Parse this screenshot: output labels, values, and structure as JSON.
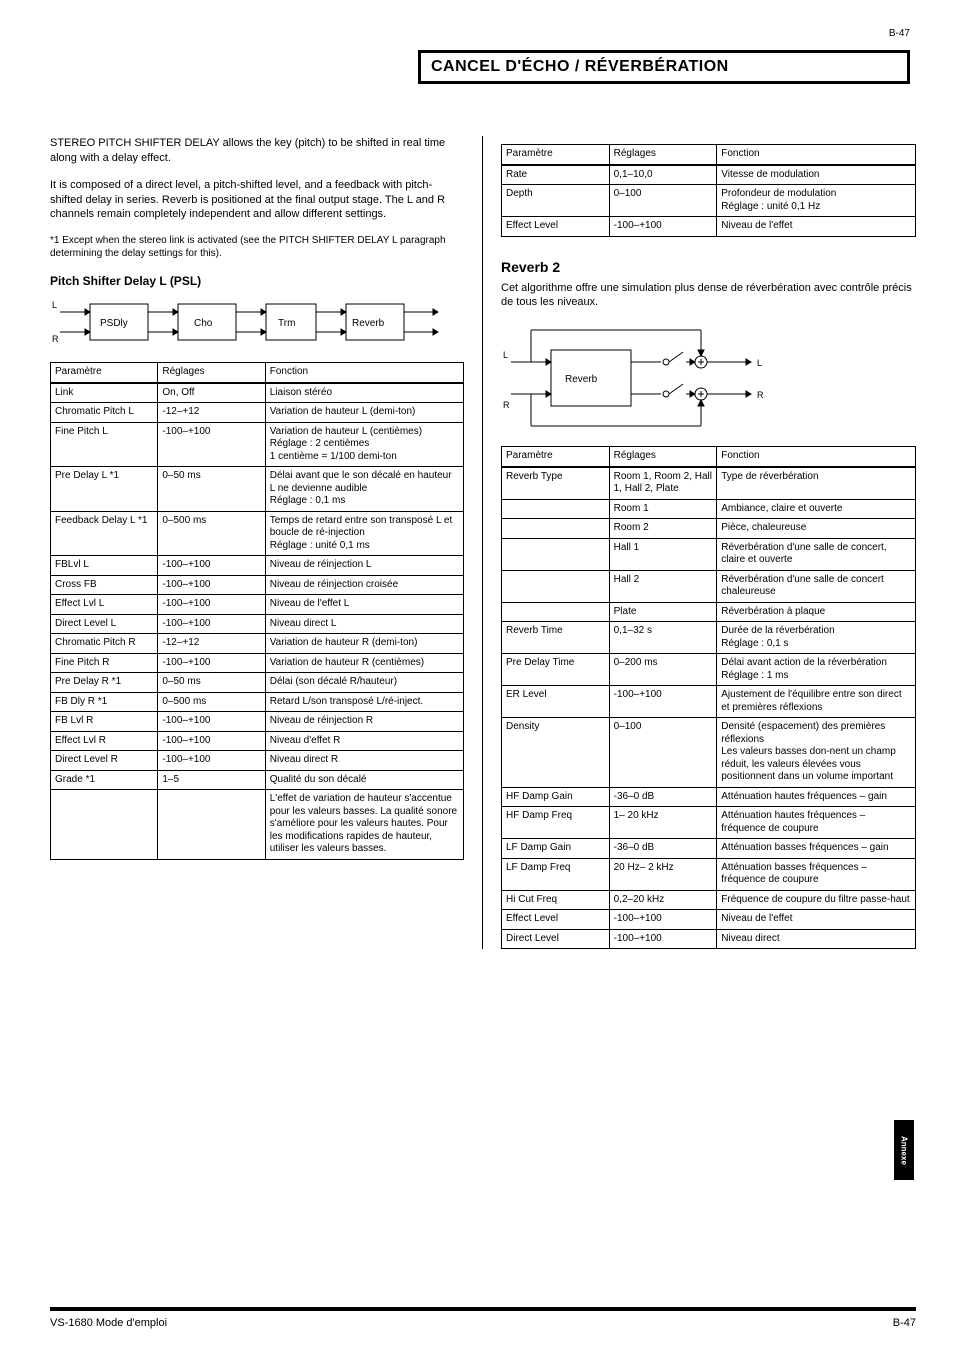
{
  "meta": {
    "page_top": "B-47",
    "header_title": "CANCEL D'ÉCHO / RÉVERBÉRATION",
    "footer_left": "VS-1680 Mode d'emploi",
    "footer_right": "B-47",
    "sidetab": "Annexe"
  },
  "intro": {
    "h": "Echo canceller/Reverb",
    "p1": "STEREO PITCH SHIFTER DELAY allows the key (pitch) to be shifted in real time along with a delay effect.",
    "p2": "It is composed of a direct level, a pitch-shifted level, and a feedback with pitch-shifted delay in series. Reverb is positioned at the final output stage. The L and R channels remain completely independent and allow different settings.",
    "note": "*1 Except when the stereo link is activated (see the PITCH SHIFTER DELAY L paragraph determining the delay settings for this)."
  },
  "pitch_shifter": {
    "title": "Pitch Shifter Delay L (PSL)",
    "diagram": {
      "blocks": [
        "PSDly",
        "Cho",
        "Trm",
        "Reverb"
      ],
      "in_labels": [
        "L",
        "R"
      ]
    },
    "headers": [
      "Paramètre",
      "Réglages",
      "Fonction"
    ],
    "rows": [
      [
        "Link",
        "On, Off",
        "Liaison stéréo"
      ],
      [
        "Chromatic Pitch L",
        "-12–+12",
        "Variation de hauteur L (demi-ton)"
      ],
      [
        "Fine Pitch L",
        "-100–+100",
        "Variation de hauteur L (centièmes)\nRéglage : 2 centièmes\n1 centième = 1/100 demi-ton"
      ],
      [
        "Pre Delay L *1",
        "0–50 ms",
        "Délai avant que le son décalé en hauteur L ne devienne audible\nRéglage : 0,1 ms"
      ],
      [
        "Feedback Delay L *1",
        "0–500 ms",
        "Temps de retard entre son transposé L et boucle de ré-injection\nRéglage : unité 0,1 ms"
      ],
      [
        "FBLvl L",
        "-100–+100",
        "Niveau de réinjection L"
      ],
      [
        "Cross FB",
        "-100–+100",
        "Niveau de réinjection croisée"
      ],
      [
        "Effect Lvl L",
        "-100–+100",
        "Niveau de l'effet L"
      ],
      [
        "Direct Level L",
        "-100–+100",
        "Niveau direct L"
      ],
      [
        "Chromatic Pitch R",
        "-12–+12",
        "Variation de hauteur R (demi-ton)"
      ],
      [
        "Fine Pitch R",
        "-100–+100",
        "Variation de hauteur R (centièmes)"
      ],
      [
        "Pre Delay R *1",
        "0–50 ms",
        "Délai (son décalé R/hauteur)"
      ],
      [
        "FB Dly R *1",
        "0–500 ms",
        "Retard L/son transposé L/ré-inject."
      ],
      [
        "FB Lvl R",
        "-100–+100",
        "Niveau de réinjection R"
      ],
      [
        "Effect Lvl R",
        "-100–+100",
        "Niveau d'effet R"
      ],
      [
        "Direct Level R",
        "-100–+100",
        "Niveau direct R"
      ],
      [
        "Grade *1",
        "1–5",
        "Qualité du son décalé"
      ],
      [
        "",
        "",
        "L'effet de variation de hauteur s'accentue pour les valeurs basses. La qualité sonore s'améliore pour les valeurs hautes. Pour les modifications rapides de hauteur, utiliser les valeurs basses."
      ]
    ]
  },
  "chorus_top": {
    "headers": [
      "Paramètre",
      "Réglages",
      "Fonction"
    ],
    "rows": [
      [
        "Rate",
        "0,1–10,0",
        "Vitesse de modulation"
      ],
      [
        "Depth",
        "0–100",
        "Profondeur de modulation\nRéglage : unité 0,1 Hz"
      ],
      [
        "Effect Level",
        "-100–+100",
        "Niveau de l'effet"
      ]
    ]
  },
  "reverb2": {
    "title": "Reverb 2",
    "desc": "Cet algorithme offre une simulation plus dense de réverbération avec contrôle précis de tous les niveaux.",
    "diagram": {
      "block": "Reverb",
      "in_labels": [
        "L",
        "R"
      ],
      "out_labels": [
        "L",
        "R"
      ]
    },
    "headers": [
      "Paramètre",
      "Réglages",
      "Fonction"
    ],
    "rows": [
      [
        "Reverb Type",
        "Room 1, Room 2, Hall 1, Hall 2, Plate",
        "Type de réverbération"
      ],
      [
        "",
        "Room 1",
        "Ambiance, claire et ouverte"
      ],
      [
        "",
        "Room 2",
        "Pièce, chaleureuse"
      ],
      [
        "",
        "Hall 1",
        "Réverbération d'une salle de concert, claire et ouverte"
      ],
      [
        "",
        "Hall 2",
        "Réverbération d'une salle de concert chaleureuse"
      ],
      [
        "",
        "Plate",
        "Réverbération à plaque"
      ],
      [
        "Reverb Time",
        "0,1–32 s",
        "Durée de la réverbération\nRéglage : 0,1 s"
      ],
      [
        "Pre Delay Time",
        "0–200 ms",
        "Délai avant action de la réverbération\nRéglage : 1 ms"
      ],
      [
        "ER Level",
        "-100–+100",
        "Ajustement de l'équilibre entre son direct et premières réflexions"
      ],
      [
        "Density",
        "0–100",
        "Densité (espacement) des premières réflexions\nLes valeurs basses don-nent un champ réduit, les valeurs élevées vous positionnent dans un volume important"
      ],
      [
        "HF Damp Gain",
        "-36–0 dB",
        "Atténuation hautes fréquences – gain"
      ],
      [
        "HF Damp Freq",
        "1– 20 kHz",
        "Atténuation hautes fréquences – fréquence de coupure"
      ],
      [
        "LF Damp Gain",
        "-36–0 dB",
        "Atténuation basses fréquences – gain"
      ],
      [
        "LF Damp Freq",
        "20 Hz– 2 kHz",
        "Atténuation basses fréquences – fréquence de coupure"
      ],
      [
        "Hi Cut Freq",
        "0,2–20 kHz",
        "Fréquence de coupure du filtre passe-haut"
      ],
      [
        "Effect Level",
        "-100–+100",
        "Niveau de l'effet"
      ],
      [
        "Direct Level",
        "-100–+100",
        "Niveau direct"
      ]
    ]
  }
}
